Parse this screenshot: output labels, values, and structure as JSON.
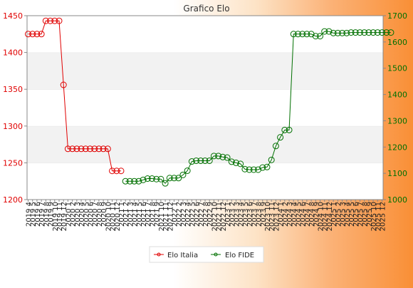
{
  "chart_data": {
    "type": "line",
    "title": "Grafico Elo",
    "xlabel": "",
    "ylabel": "",
    "y_left_ticks": [
      1200,
      1250,
      1300,
      1350,
      1400,
      1450
    ],
    "y_right_ticks": [
      1000,
      1100,
      1200,
      1300,
      1400,
      1500,
      1600,
      1700
    ],
    "ylim_left": [
      1200,
      1450
    ],
    "ylim_right": [
      1000,
      1700
    ],
    "legend_position": "bottom-center",
    "colors": {
      "italia": "#e00000",
      "fide": "#007000",
      "band": "#f2f2f2",
      "axis": "#888888"
    },
    "x_labels": [
      "2019 4",
      "2019 5",
      "2019 6",
      "2019 7",
      "2019 8",
      "2019 9",
      "2019 10",
      "2019 11",
      "2019 12",
      "2020 1",
      "2020 2",
      "2020 3",
      "2020 4",
      "2020 5",
      "2020 6",
      "2020 7",
      "2020 8",
      "2020 9",
      "2020 10",
      "2020 11",
      "2020 12",
      "2021 1",
      "2021 2",
      "2021 3",
      "2021 4",
      "2021 5",
      "2021 6",
      "2021 7",
      "2021 8",
      "2021 9",
      "2021 10",
      "2021 11",
      "2021 12",
      "2022 1",
      "2022 2",
      "2022 3",
      "2022 4",
      "2022 5",
      "2022 6",
      "2022 7",
      "2022 8",
      "2022 9",
      "2022 10",
      "2022 11",
      "2022 12",
      "2023 1",
      "2023 2",
      "2023 3",
      "2023 4",
      "2023 5",
      "2023 6",
      "2023 7",
      "2023 8",
      "2023 9",
      "2023 10",
      "2023 11",
      "2023 12",
      "2024 1",
      "2024 2",
      "2024 3",
      "2024 4",
      "2024 5",
      "2024 6",
      "2024 7",
      "2024 8",
      "2024 9",
      "2024 10",
      "2024 11",
      "2024 12",
      "2025 1",
      "2025 2",
      "2025 3",
      "2025 4",
      "2025 5",
      "2025 6",
      "2025 7",
      "2025 8",
      "2025 9",
      "2025 10",
      "2025 11",
      "2025 12"
    ],
    "series": [
      {
        "name": "Elo Italia",
        "axis": "left",
        "values": [
          1425,
          1425,
          1425,
          1425,
          1443,
          1443,
          1443,
          1443,
          1356,
          1269,
          1269,
          1269,
          1269,
          1269,
          1269,
          1269,
          1269,
          1269,
          1269,
          1239,
          1239,
          1239,
          null,
          null,
          null,
          null,
          null,
          null,
          null,
          null,
          null,
          null,
          null,
          null,
          null,
          null,
          null,
          null,
          null,
          null,
          null,
          null,
          null,
          null,
          null,
          null,
          null,
          null,
          null,
          null,
          null,
          null,
          null,
          null,
          null,
          null,
          null,
          null,
          null,
          null,
          null,
          null,
          null,
          null,
          null,
          null,
          null,
          null,
          null,
          null,
          null,
          null,
          null,
          null,
          null,
          null,
          null,
          null,
          null,
          null,
          null
        ]
      },
      {
        "name": "Elo FIDE",
        "axis": "right",
        "values": [
          null,
          null,
          null,
          null,
          null,
          null,
          null,
          null,
          null,
          null,
          null,
          null,
          null,
          null,
          null,
          null,
          null,
          null,
          null,
          null,
          null,
          null,
          1070,
          1070,
          1070,
          1070,
          1075,
          1080,
          1080,
          1078,
          1078,
          1062,
          1082,
          1082,
          1082,
          1094,
          1110,
          1145,
          1148,
          1148,
          1148,
          1148,
          1166,
          1166,
          1162,
          1160,
          1144,
          1140,
          1136,
          1116,
          1114,
          1114,
          1114,
          1122,
          1124,
          1151,
          1204,
          1237,
          1265,
          1265,
          1630,
          1630,
          1630,
          1630,
          1630,
          1622,
          1622,
          1640,
          1640,
          1634,
          1634,
          1634,
          1634,
          1636,
          1636,
          1636,
          1636,
          1636,
          1636,
          1636,
          1636,
          1636,
          1636
        ]
      }
    ]
  }
}
